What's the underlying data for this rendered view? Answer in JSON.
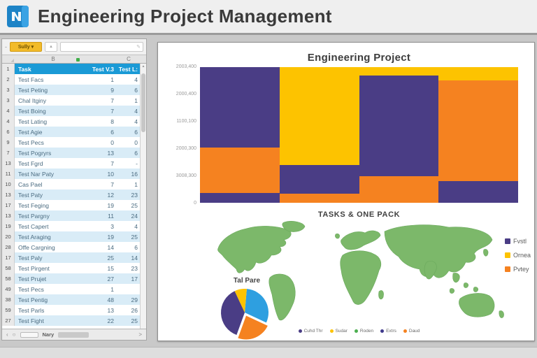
{
  "window": {
    "title": "Engineering Project Management"
  },
  "icons": {
    "name_box_caret": "▾",
    "fx": "▲",
    "pencil": "✎",
    "dash": "-",
    "corner_triangle": "◢",
    "scroll_up": "▲",
    "back": "‹",
    "refresh": "○",
    "next": ">"
  },
  "spreadsheet": {
    "name_box_value": "Sully",
    "formula_bar_value": "",
    "column_headers": {
      "b": "B",
      "c": "C"
    },
    "sheet_name": "Nary",
    "table": {
      "header": {
        "num": "1",
        "task": "Task",
        "v1": "Test V.3",
        "v2": "Test L:"
      },
      "rows": [
        {
          "num": "2",
          "task": "Test Facs",
          "v1": "1",
          "v2": "4"
        },
        {
          "num": "3",
          "task": "Test Peting",
          "v1": "9",
          "v2": "6"
        },
        {
          "num": "3",
          "task": "Chal Itginy",
          "v1": "7",
          "v2": "1"
        },
        {
          "num": "4",
          "task": "Test Boing",
          "v1": "7",
          "v2": "4"
        },
        {
          "num": "4",
          "task": "Test Lating",
          "v1": "8",
          "v2": "4"
        },
        {
          "num": "6",
          "task": "Test Agie",
          "v1": "6",
          "v2": "6"
        },
        {
          "num": "9",
          "task": "Test Pecs",
          "v1": "0",
          "v2": "0"
        },
        {
          "num": "7",
          "task": "Test Pogryrs",
          "v1": "13",
          "v2": "6"
        },
        {
          "num": "13",
          "task": "Test Fgrd",
          "v1": "7",
          "v2": "-"
        },
        {
          "num": "11",
          "task": "Test Nar Paty",
          "v1": "10",
          "v2": "16"
        },
        {
          "num": "10",
          "task": "Cas Pael",
          "v1": "7",
          "v2": "1"
        },
        {
          "num": "13",
          "task": "Test Paty",
          "v1": "12",
          "v2": "23"
        },
        {
          "num": "17",
          "task": "Test Feging",
          "v1": "19",
          "v2": "25"
        },
        {
          "num": "13",
          "task": "Test Pargny",
          "v1": "11",
          "v2": "24"
        },
        {
          "num": "19",
          "task": "Test Capert",
          "v1": "3",
          "v2": "4"
        },
        {
          "num": "20",
          "task": "Test Araging",
          "v1": "19",
          "v2": "25"
        },
        {
          "num": "28",
          "task": "Offe Cargning",
          "v1": "14",
          "v2": "6"
        },
        {
          "num": "17",
          "task": "Test Paly",
          "v1": "25",
          "v2": "14"
        },
        {
          "num": "58",
          "task": "Test Pirgent",
          "v1": "15",
          "v2": "23"
        },
        {
          "num": "58",
          "task": "Test Prujet",
          "v1": "27",
          "v2": "17"
        },
        {
          "num": "49",
          "task": "Test Pecs",
          "v1": "1",
          "v2": ""
        },
        {
          "num": "38",
          "task": "Test Pentig",
          "v1": "48",
          "v2": "29"
        },
        {
          "num": "59",
          "task": "Test Parls",
          "v1": "13",
          "v2": "26"
        },
        {
          "num": "27",
          "task": "Test Fight",
          "v1": "22",
          "v2": "25"
        }
      ]
    }
  },
  "chart_data": [
    {
      "type": "bar",
      "subtype": "stacked-100-percent",
      "title": "Engineering Project",
      "y_ticks": [
        "2003,400",
        "2000,400",
        "1100,100",
        "2000,300",
        "3008,300",
        "0"
      ],
      "legend_position": "none",
      "grid": false,
      "series_colors": {
        "purple": "#4a3d85",
        "orange": "#f58220",
        "yellow": "#fdc300"
      },
      "columns": [
        [
          {
            "color": "#4a3d85",
            "pct": 59.5
          },
          {
            "color": "#f58220",
            "pct": 33.5
          },
          {
            "color": "#4a3d85",
            "pct": 7
          }
        ],
        [
          {
            "color": "#fdc300",
            "pct": 72
          },
          {
            "color": "#4a3d85",
            "pct": 21.5
          },
          {
            "color": "#f58220",
            "pct": 6.5
          }
        ],
        [
          {
            "color": "#fdc300",
            "pct": 6
          },
          {
            "color": "#4a3d85",
            "pct": 74.5
          },
          {
            "color": "#f58220",
            "pct": 19.5
          }
        ],
        [
          {
            "color": "#fdc300",
            "pct": 10
          },
          {
            "color": "#f58220",
            "pct": 74
          },
          {
            "color": "#4a3d85",
            "pct": 16
          }
        ]
      ]
    },
    {
      "type": "map",
      "title": "TASKS & ONE PACK",
      "map_color": "#7cb86a",
      "legend_position": "right",
      "legend": [
        {
          "label": "Fvstl",
          "color": "#4a3d85"
        },
        {
          "label": "Ornea",
          "color": "#fdc300"
        },
        {
          "label": "Pvtey",
          "color": "#f58220"
        }
      ],
      "footer_legend": [
        {
          "label": "Cuhd Thr",
          "color": "#4a3d85"
        },
        {
          "label": "Sudar",
          "color": "#fdc300"
        },
        {
          "label": "Roden",
          "color": "#4caf50"
        },
        {
          "label": "Extrs",
          "color": "#3f3a8c"
        },
        {
          "label": "Daud",
          "color": "#f58220"
        }
      ]
    },
    {
      "type": "pie",
      "title": "Tal Pare",
      "slices": [
        {
          "label": "Blue",
          "color": "#2e9fe0",
          "pct": 30
        },
        {
          "label": "Orange",
          "color": "#f58220",
          "pct": 24,
          "exploded": true
        },
        {
          "label": "Purple",
          "color": "#4a3d85",
          "pct": 38
        },
        {
          "label": "Yellow",
          "color": "#fdc300",
          "pct": 8
        }
      ]
    }
  ]
}
